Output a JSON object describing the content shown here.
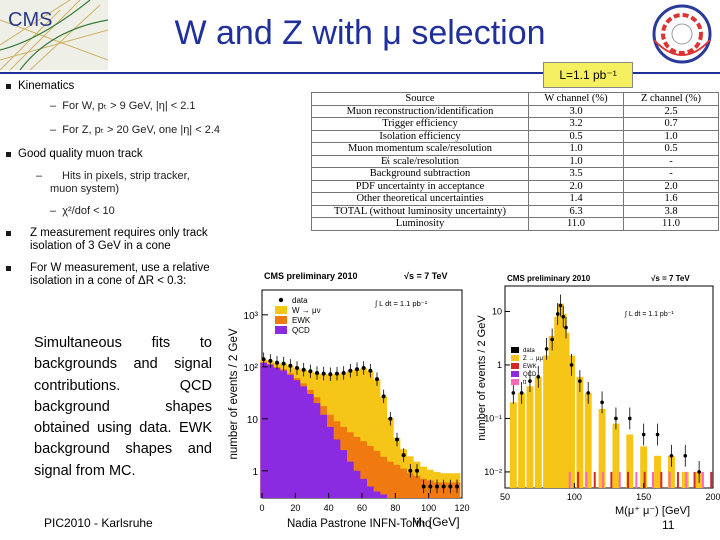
{
  "slide": {
    "title": "W and Z with μ selection",
    "luminosity_badge": "L=1.1 pb⁻¹",
    "cms_logo_text": "CMS",
    "accent_color": "#1f2f9c"
  },
  "bullets": [
    {
      "level": 1,
      "text": "Kinematics"
    },
    {
      "level": 2,
      "text": "For W, pₜ > 9 GeV, |η| < 2.1"
    },
    {
      "level": 2,
      "text": "For Z, pₜ > 20 GeV, one |η| < 2.4"
    },
    {
      "level": 1,
      "text": "Good quality muon track"
    },
    {
      "level": 2,
      "text": "Hits in pixels, strip tracker, muon system)"
    },
    {
      "level": 2,
      "text": "χ²/dof < 10"
    },
    {
      "level": 1,
      "text": "Z measurement requires only track isolation of 3 GeV in a cone"
    },
    {
      "level": 1,
      "text": "For W measurement, use a relative isolation in a cone of ΔR < 0.3:"
    }
  ],
  "table": {
    "headers": [
      "Source",
      "W channel (%)",
      "Z channel (%)"
    ],
    "rows": [
      [
        "Muon reconstruction/identification",
        "3.0",
        "2.5"
      ],
      [
        "Trigger efficiency",
        "3.2",
        "0.7"
      ],
      [
        "Isolation efficiency",
        "0.5",
        "1.0"
      ],
      [
        "Muon momentum scale/resolution",
        "1.0",
        "0.5"
      ],
      [
        "E̸ₜ scale/resolution",
        "1.0",
        "-"
      ],
      [
        "Background subtraction",
        "3.5",
        "-"
      ],
      [
        "PDF uncertainty in acceptance",
        "2.0",
        "2.0"
      ],
      [
        "Other theoretical uncertainties",
        "1.4",
        "1.6"
      ],
      [
        "TOTAL (without luminosity uncertainty)",
        "6.3",
        "3.8"
      ],
      [
        "Luminosity",
        "11.0",
        "11.0"
      ]
    ]
  },
  "description": "Simultaneous fits to backgrounds and signal contributions. QCD background shapes obtained using data. EWK background shapes and signal from MC.",
  "footer": {
    "left": "PIC2010 - Karlsruhe",
    "middle": "Nadia Pastrone  INFN-Torino",
    "page": "11"
  },
  "chart_data": [
    {
      "type": "area",
      "title": "CMS preliminary 2010",
      "energy_label": "√s = 7 TeV",
      "lumi_label": "∫ L dt = 1.1 pb⁻¹",
      "xlabel": "Mₜ [GeV]",
      "ylabel": "number of events / 2 GeV",
      "xlim": [
        0,
        120
      ],
      "ylim_log": [
        0.3,
        3000
      ],
      "x_ticks": [
        "0",
        "20",
        "40",
        "60",
        "80",
        "100",
        "120"
      ],
      "y_ticks": [
        "1",
        "10",
        "10²",
        "10³"
      ],
      "legend": [
        "data",
        "W → μν",
        "EWK",
        "QCD"
      ],
      "colors": {
        "W": "#f5c518",
        "EWK": "#f07a10",
        "QCD": "#8a2be2",
        "data": "#000000"
      },
      "x": [
        1,
        5,
        9,
        13,
        17,
        21,
        25,
        29,
        33,
        37,
        41,
        45,
        49,
        53,
        57,
        61,
        65,
        69,
        73,
        77,
        81,
        85,
        89,
        93,
        97,
        101,
        105,
        109,
        113,
        117
      ],
      "series": [
        {
          "name": "QCD",
          "values": [
            120,
            110,
            95,
            85,
            70,
            55,
            42,
            30,
            20,
            12,
            7,
            4,
            2.5,
            1.5,
            1.0,
            0.7,
            0.5,
            0.4,
            0.35,
            0.3,
            0.3,
            0.3,
            0.3,
            0.3,
            0.3,
            0.3,
            0.3,
            0.3,
            0.3,
            0.3
          ]
        },
        {
          "name": "EWK",
          "values": [
            3,
            3.5,
            4,
            4.5,
            5,
            5.5,
            6,
            6,
            6,
            5.5,
            5,
            5,
            4.5,
            4,
            3.5,
            3,
            2.5,
            2,
            1.5,
            1.2,
            1,
            0.8,
            0.6,
            0.5,
            0.4,
            0.35,
            0.3,
            0.3,
            0.3,
            0.3
          ]
        },
        {
          "name": "W → μν",
          "values": [
            15,
            18,
            22,
            26,
            30,
            35,
            40,
            45,
            50,
            55,
            60,
            65,
            70,
            80,
            85,
            90,
            80,
            55,
            25,
            9,
            3,
            1.5,
            1,
            0.7,
            0.5,
            0.4,
            0.35,
            0.3,
            0.3,
            0.3
          ]
        },
        {
          "name": "data",
          "values": [
            140,
            130,
            120,
            115,
            105,
            95,
            88,
            82,
            76,
            74,
            72,
            74,
            76,
            84,
            90,
            95,
            84,
            58,
            27,
            10,
            4,
            2,
            1,
            1,
            0.5,
            0.5,
            0.5,
            0.5,
            0.5,
            0.5
          ]
        }
      ]
    },
    {
      "type": "bar",
      "title": "CMS preliminary 2010",
      "energy_label": "√s = 7 TeV",
      "lumi_label": "∫ L dt = 1.1 pb⁻¹",
      "xlabel": "M(μ⁺ μ⁻) [GeV]",
      "ylabel": "number of events / 2 GeV",
      "xlim": [
        50,
        200
      ],
      "x_ticks": [
        "50",
        "100",
        "150",
        "200"
      ],
      "y_ticks": [
        "10⁻²",
        "10⁻¹",
        "1",
        "10"
      ],
      "legend": [
        "data",
        "Z → μμ",
        "EWK",
        "QCD",
        "tt"
      ],
      "colors": {
        "Z": "#f5c518",
        "EWK": "#d62728",
        "QCD": "#8a2be2",
        "tt": "#ff69b4",
        "data": "#000000"
      },
      "x": [
        56,
        62,
        68,
        74,
        80,
        84,
        88,
        90,
        92,
        94,
        98,
        104,
        110,
        120,
        130,
        140,
        150,
        160,
        170,
        180,
        190
      ],
      "series": [
        {
          "name": "Z → μμ",
          "values": [
            0.2,
            0.3,
            0.4,
            0.6,
            1.5,
            3.5,
            8,
            14,
            9,
            4,
            1.5,
            0.6,
            0.3,
            0.15,
            0.08,
            0.05,
            0.03,
            0.02,
            0.02,
            0.01,
            0.01
          ]
        },
        {
          "name": "data",
          "values": [
            0.3,
            0.3,
            0.5,
            0.6,
            2,
            3,
            9,
            13,
            8,
            5,
            1,
            0.5,
            0.3,
            0.2,
            0.1,
            0.1,
            0.05,
            0.05,
            0.02,
            0.02,
            0.01
          ]
        }
      ]
    }
  ]
}
